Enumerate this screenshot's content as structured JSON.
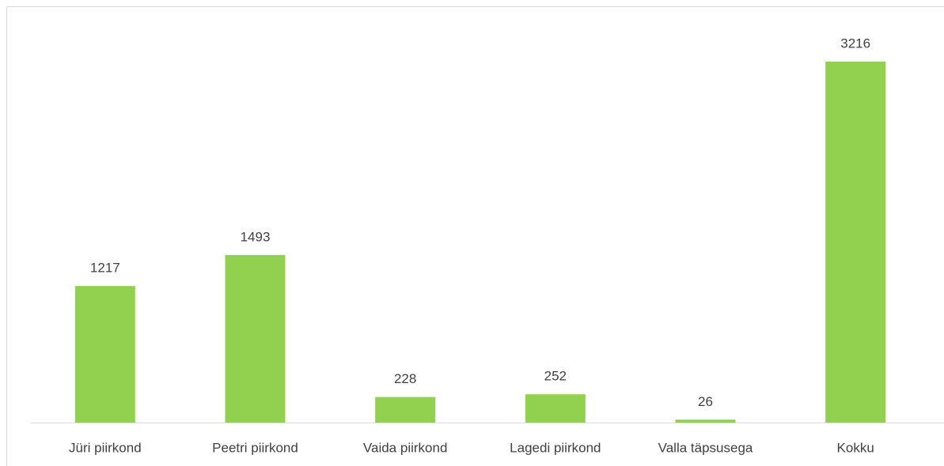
{
  "chart_data": {
    "type": "bar",
    "categories": [
      "Jüri piirkond",
      "Peetri piirkond",
      "Vaida piirkond",
      "Lagedi piirkond",
      "Valla täpsusega",
      "Kokku"
    ],
    "values": [
      1217,
      1493,
      228,
      252,
      26,
      3216
    ],
    "color": "#92d050"
  }
}
